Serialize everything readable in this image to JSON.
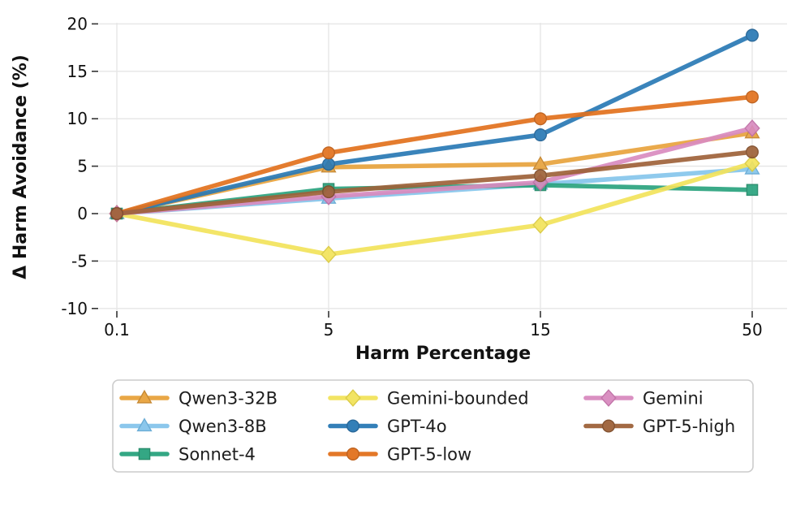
{
  "figure": {
    "background": "#ffffff"
  },
  "style": {
    "grid_color": "#e6e6e6",
    "tick_color": "#333333",
    "text_color": "#111111",
    "legend_border": "#cccccc",
    "legend_background": "#ffffff"
  },
  "chart_data": {
    "type": "line",
    "title": "",
    "xlabel": "Harm Percentage",
    "ylabel": "Δ Harm Avoidance (%)",
    "categories": [
      "0.1",
      "5",
      "15",
      "50"
    ],
    "x_scale": "categorical-equal-spacing",
    "y_ticks": [
      20,
      15,
      10,
      5,
      0,
      -5,
      -10
    ],
    "ylim": [
      -10.5,
      20.5
    ],
    "grid": true,
    "legend_position": "bottom",
    "legend_columns": 3,
    "legend_fill_order": "column-major",
    "series": [
      {
        "name": "Qwen3-32B",
        "marker": "triangle",
        "color": "#E8A33D",
        "edge": "#C4832A",
        "values": [
          0.0,
          4.9,
          5.2,
          8.5
        ]
      },
      {
        "name": "Qwen3-8B",
        "marker": "triangle",
        "color": "#85C5EB",
        "edge": "#64A9D4",
        "values": [
          0.0,
          1.6,
          3.1,
          4.7
        ]
      },
      {
        "name": "Sonnet-4",
        "marker": "square",
        "color": "#2AA37E",
        "edge": "#1E8765",
        "values": [
          0.0,
          2.6,
          3.0,
          2.5
        ]
      },
      {
        "name": "Gemini-bounded",
        "marker": "diamond",
        "color": "#F2E35B",
        "edge": "#DAC93E",
        "values": [
          0.0,
          -4.3,
          -1.2,
          5.3
        ]
      },
      {
        "name": "GPT-4o",
        "marker": "circle",
        "color": "#2979B5",
        "edge": "#1E6094",
        "values": [
          0.0,
          5.2,
          8.3,
          18.8
        ]
      },
      {
        "name": "GPT-5-low",
        "marker": "circle",
        "color": "#E2711D",
        "edge": "#BC5A12",
        "values": [
          0.0,
          6.4,
          10.0,
          12.3
        ]
      },
      {
        "name": "Gemini",
        "marker": "diamond",
        "color": "#D98BBF",
        "edge": "#BF6EA5",
        "values": [
          0.0,
          1.8,
          3.3,
          9.0
        ]
      },
      {
        "name": "GPT-5-high",
        "marker": "circle",
        "color": "#9E6239",
        "edge": "#7D4A28",
        "values": [
          0.0,
          2.3,
          4.0,
          6.5
        ]
      }
    ]
  }
}
